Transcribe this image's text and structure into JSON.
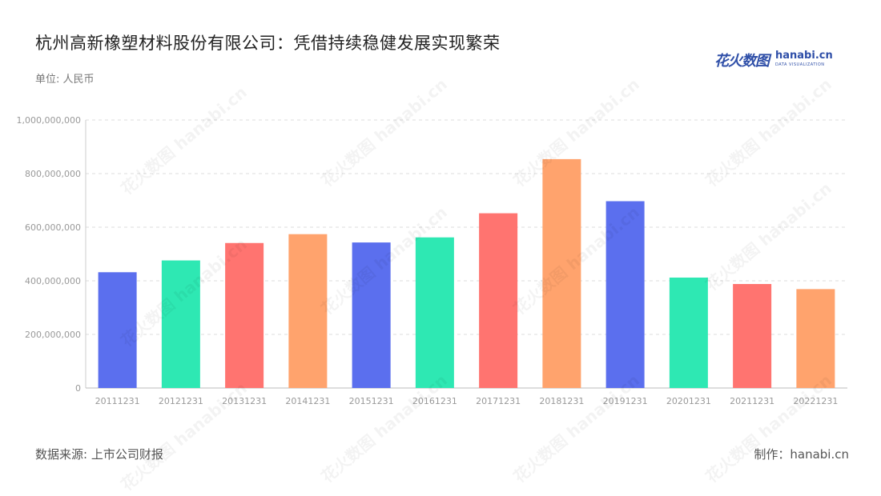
{
  "header": {
    "title": "杭州高新橡塑材料股份有限公司：凭借持续稳健发展实现繁荣",
    "unit": "单位: 人民币"
  },
  "logo": {
    "zh": "花火数图",
    "en": "hanabi.cn",
    "sub": "DATA VISUALIZATION"
  },
  "footer": {
    "source": "数据来源: 上市公司财报",
    "credit": "制作：hanabi.cn"
  },
  "watermark": "花火数图 hanabi.cn",
  "colors": [
    "#5b6fee",
    "#2ee8b3",
    "#ff7470",
    "#ffa36d"
  ],
  "chart_data": {
    "type": "bar",
    "categories": [
      "20111231",
      "20121231",
      "20131231",
      "20141231",
      "20151231",
      "20161231",
      "20171231",
      "20181231",
      "20191231",
      "20201231",
      "20211231",
      "20221231"
    ],
    "values": [
      432000000,
      476000000,
      541000000,
      574000000,
      543000000,
      562000000,
      652000000,
      854000000,
      697000000,
      412000000,
      388000000,
      369000000
    ],
    "ylim": [
      0,
      1000000000
    ],
    "yticks": [
      0,
      200000000,
      400000000,
      600000000,
      800000000,
      1000000000
    ],
    "ytick_labels": [
      "0",
      "200,000,000",
      "400,000,000",
      "600,000,000",
      "800,000,000",
      "1,000,000,000"
    ],
    "grid": true,
    "legend": "none"
  }
}
